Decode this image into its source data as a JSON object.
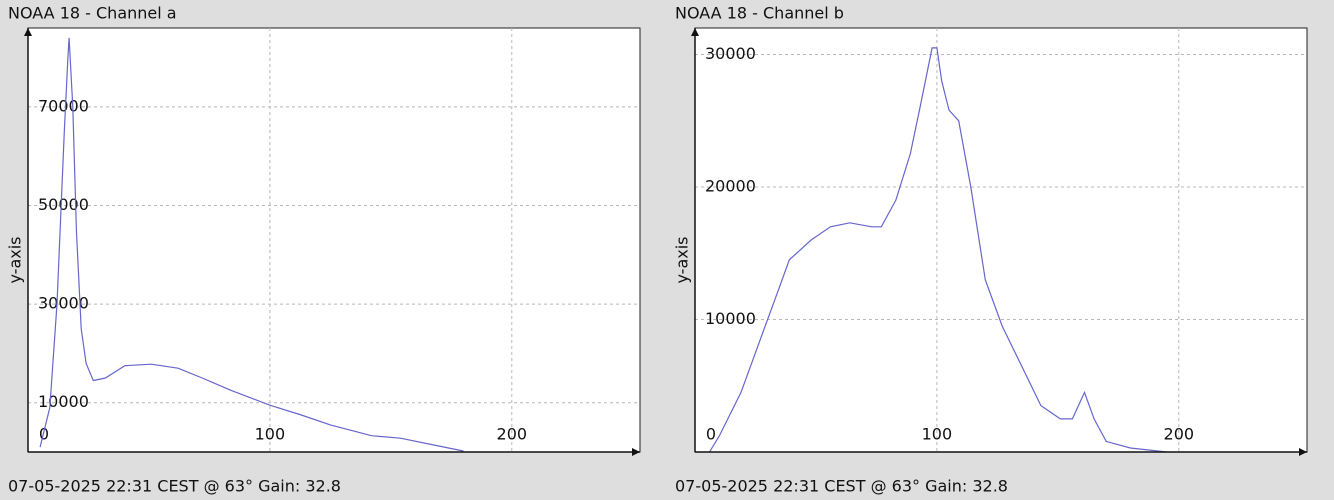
{
  "chart_data": [
    {
      "type": "line",
      "title": "NOAA 18 - Channel a",
      "ylabel": "y-axis",
      "caption": "07-05-2025 22:31 CEST @ 63° Gain: 32.8",
      "color": "#6666cc",
      "grid": true,
      "xlim": [
        0,
        253
      ],
      "ylim": [
        0,
        86000
      ],
      "xticks": [
        0,
        100,
        200
      ],
      "yticks": [
        10000,
        30000,
        50000,
        70000
      ],
      "x": [
        5,
        9,
        12,
        15,
        16.5,
        17,
        18.5,
        20,
        22,
        24,
        27,
        32,
        40,
        51,
        62,
        72,
        84,
        100,
        113,
        125,
        142,
        154,
        167,
        180
      ],
      "values": [
        1000,
        9000,
        30000,
        65000,
        80000,
        84000,
        70000,
        45000,
        25000,
        18000,
        14500,
        15000,
        17500,
        17800,
        17000,
        15000,
        12500,
        9500,
        7500,
        5500,
        3300,
        2800,
        1500,
        200
      ]
    },
    {
      "type": "line",
      "title": "NOAA 18 - Channel b",
      "ylabel": "y-axis",
      "caption": "07-05-2025 22:31 CEST @ 63° Gain: 32.8",
      "color": "#6666cc",
      "grid": true,
      "xlim": [
        0,
        253
      ],
      "ylim": [
        0,
        32000
      ],
      "xticks": [
        0,
        100,
        200
      ],
      "yticks": [
        10000,
        20000,
        30000
      ],
      "x": [
        6,
        10,
        19,
        27,
        35,
        39,
        48,
        56,
        64,
        73,
        77,
        83,
        89,
        93,
        98,
        100,
        102,
        105,
        109,
        114,
        120,
        127,
        135,
        143,
        151,
        156,
        161,
        165,
        170,
        180,
        195
      ],
      "values": [
        0,
        1200,
        4500,
        8500,
        12500,
        14500,
        16000,
        17000,
        17300,
        17000,
        17000,
        19000,
        22500,
        26000,
        30500,
        30500,
        28000,
        25800,
        25000,
        20000,
        13000,
        9500,
        6500,
        3500,
        2500,
        2500,
        4500,
        2500,
        800,
        300,
        0
      ]
    }
  ]
}
